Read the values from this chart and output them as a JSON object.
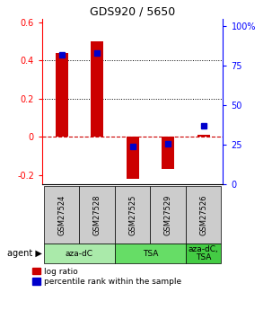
{
  "title": "GDS920 / 5650",
  "samples": [
    "GSM27524",
    "GSM27528",
    "GSM27525",
    "GSM27529",
    "GSM27526"
  ],
  "log_ratios": [
    0.44,
    0.5,
    -0.22,
    -0.17,
    0.01
  ],
  "percentile_ranks": [
    82,
    83,
    24,
    26,
    37
  ],
  "ylim_left": [
    -0.25,
    0.62
  ],
  "ylim_right": [
    0,
    105
  ],
  "left_ticks": [
    -0.2,
    0.0,
    0.2,
    0.4,
    0.6
  ],
  "right_ticks": [
    0,
    25,
    50,
    75,
    100
  ],
  "left_tick_labels": [
    "-0.2",
    "0",
    "0.2",
    "0.4",
    "0.6"
  ],
  "right_tick_labels": [
    "0",
    "25",
    "50",
    "75",
    "100%"
  ],
  "bar_color": "#cc0000",
  "dot_color": "#0000cc",
  "zero_line_color": "#cc0000",
  "dotted_line_color": "#000000",
  "sample_bg_color": "#cccccc",
  "agent_groups": [
    {
      "label": "aza-dC",
      "start": 0,
      "end": 1,
      "color": "#aaeaaa"
    },
    {
      "label": "TSA",
      "start": 2,
      "end": 3,
      "color": "#66dd66"
    },
    {
      "label": "aza-dC,\nTSA",
      "start": 4,
      "end": 4,
      "color": "#44cc44"
    }
  ],
  "bar_width": 0.35,
  "dot_size": 28,
  "title_fontsize": 9,
  "tick_fontsize": 7,
  "label_fontsize": 6,
  "agent_fontsize": 6.5,
  "legend_fontsize": 6.5
}
